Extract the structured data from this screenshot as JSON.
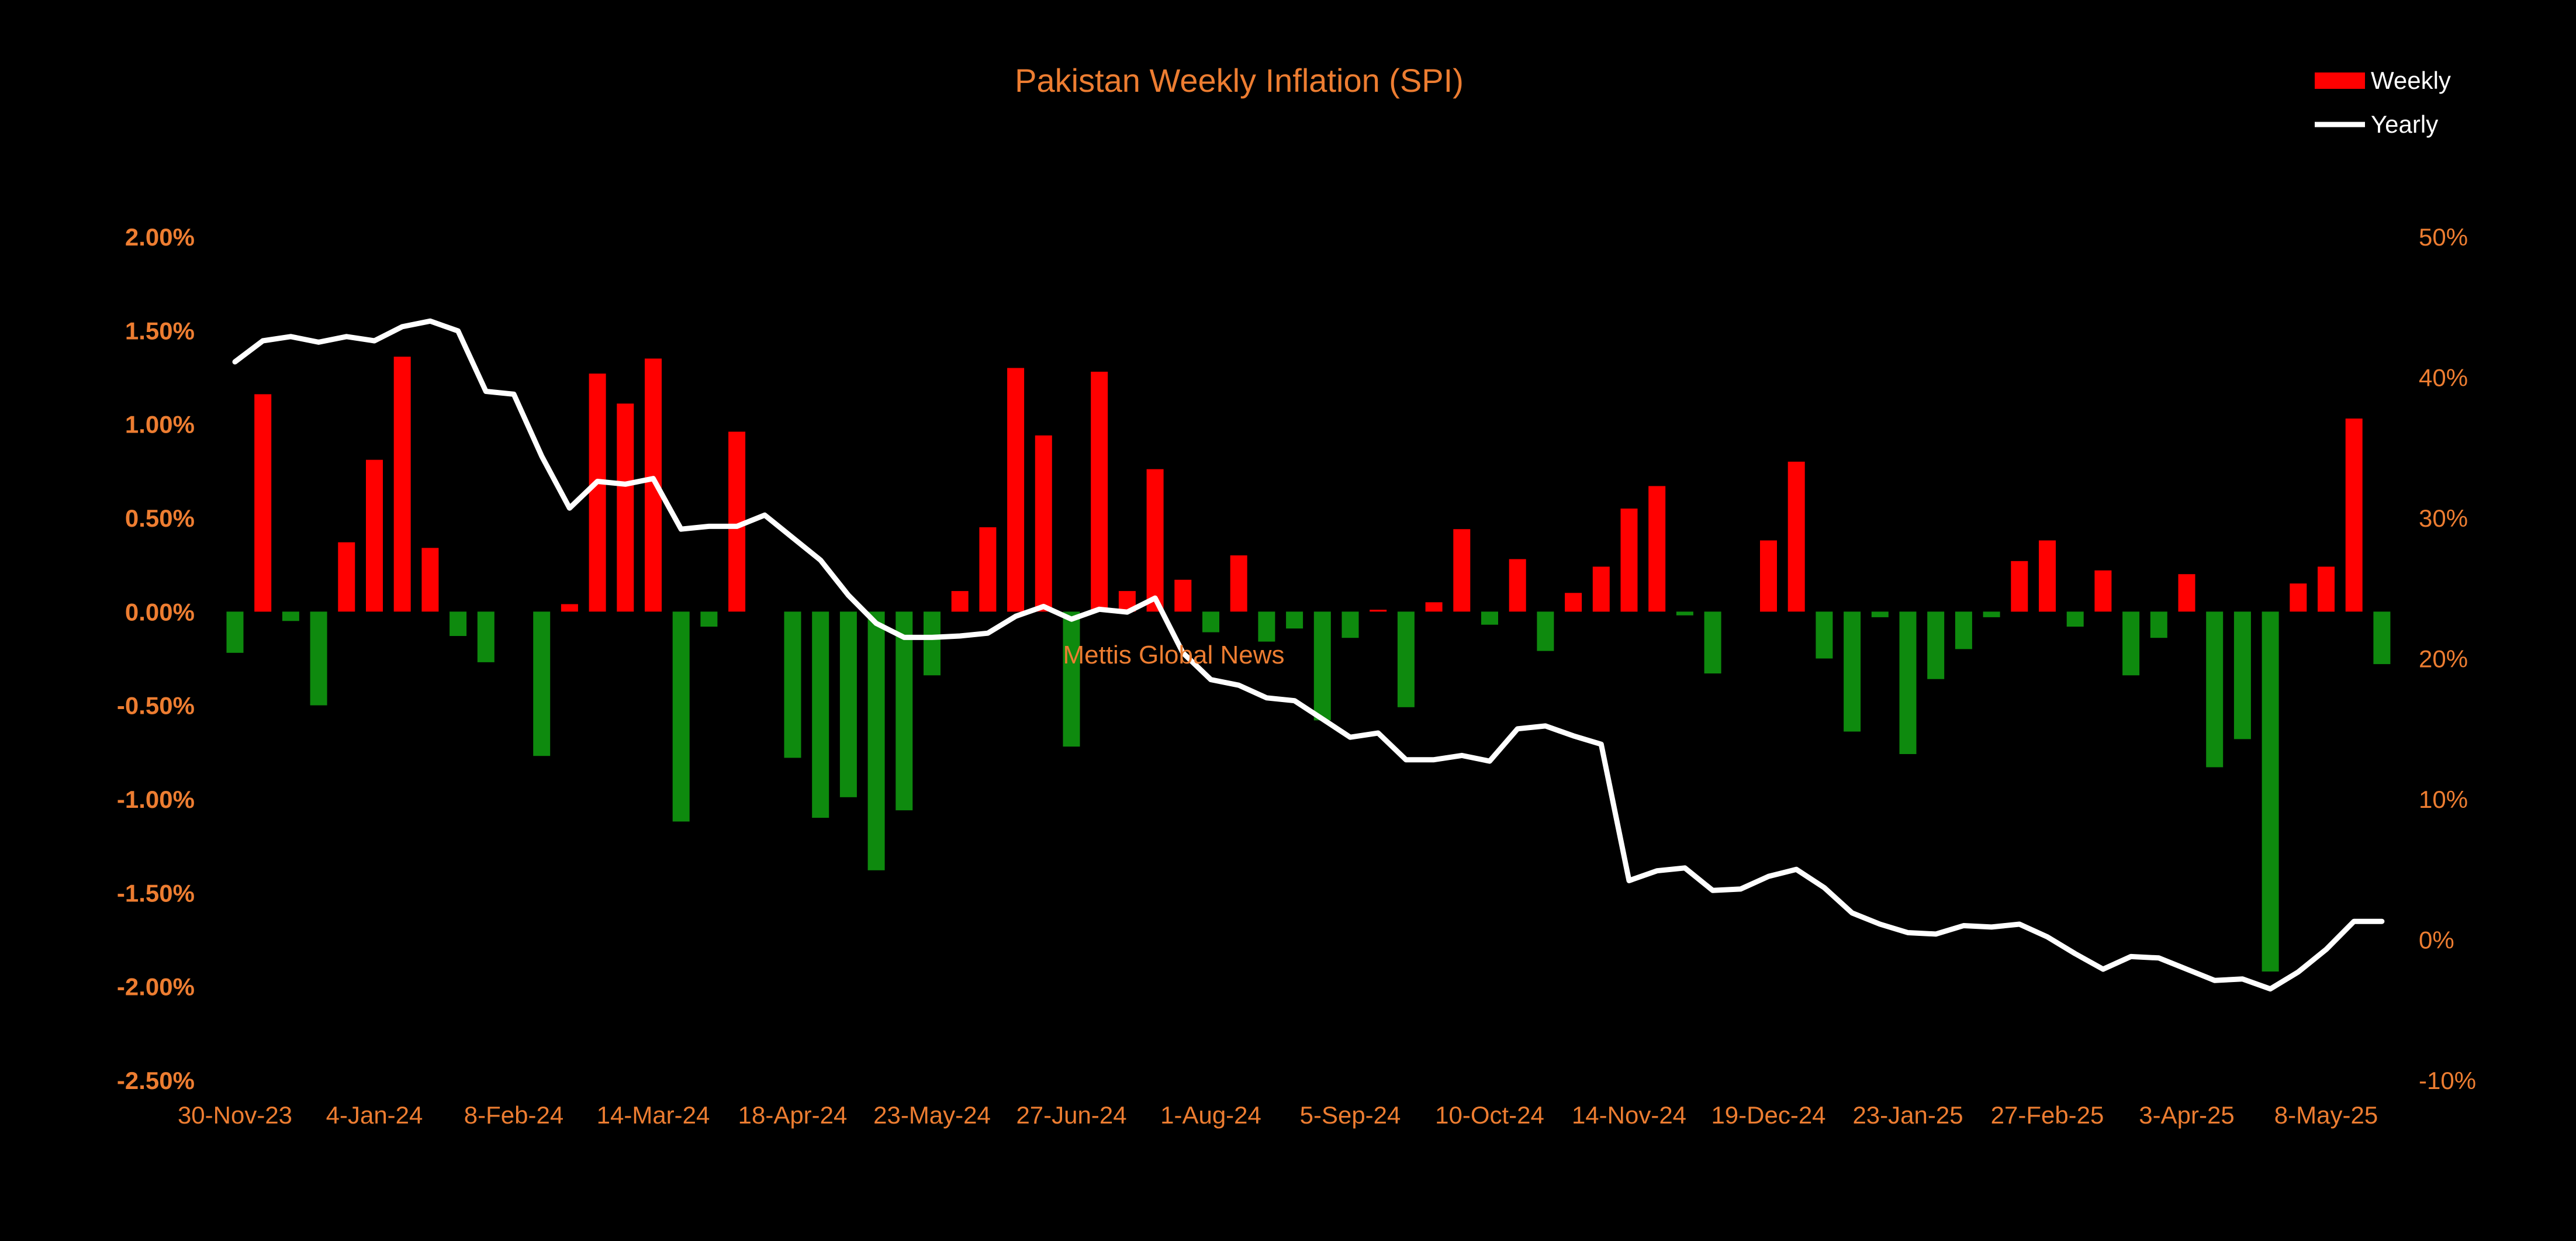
{
  "chart_data": {
    "type": "bar",
    "title": "Pakistan Weekly Inflation (SPI)",
    "watermark": "Mettis Global News",
    "legend_position": "top-right",
    "grid": false,
    "colors": {
      "background": "#000000",
      "text": "#ED7D31",
      "weekly_positive": "#FF0000",
      "weekly_negative": "#0E8A0E",
      "yearly_line": "#FFFFFF"
    },
    "y_left": {
      "ylim": [
        -2.5,
        2.0
      ],
      "ticks": [
        "2.00%",
        "1.50%",
        "1.00%",
        "0.50%",
        "0.00%",
        "-0.50%",
        "-1.00%",
        "-1.50%",
        "-2.00%",
        "-2.50%"
      ]
    },
    "y_right": {
      "ylim": [
        -10,
        50
      ],
      "ticks": [
        "50%",
        "40%",
        "30%",
        "20%",
        "10%",
        "0%",
        "-10%"
      ]
    },
    "x_tick_labels": [
      "30-Nov-23",
      "4-Jan-24",
      "8-Feb-24",
      "14-Mar-24",
      "18-Apr-24",
      "23-May-24",
      "27-Jun-24",
      "1-Aug-24",
      "5-Sep-24",
      "10-Oct-24",
      "14-Nov-24",
      "19-Dec-24",
      "23-Jan-25",
      "27-Feb-25",
      "3-Apr-25",
      "8-May-25"
    ],
    "series": [
      {
        "name": "Weekly",
        "type": "bar",
        "axis": "left",
        "values": [
          -0.22,
          1.16,
          -0.05,
          -0.5,
          0.37,
          0.81,
          1.36,
          0.34,
          -0.13,
          -0.27,
          0.0,
          -0.77,
          0.04,
          1.27,
          1.11,
          1.35,
          -1.12,
          -0.08,
          0.96,
          0.0,
          -0.78,
          -1.1,
          -0.99,
          -1.38,
          -1.06,
          -0.34,
          0.11,
          0.45,
          1.3,
          0.94,
          -0.72,
          1.28,
          0.11,
          0.76,
          0.17,
          -0.11,
          0.3,
          -0.16,
          -0.09,
          -0.58,
          -0.14,
          0.01,
          -0.51,
          0.05,
          0.44,
          -0.07,
          0.28,
          -0.21,
          0.1,
          0.24,
          0.55,
          0.67,
          -0.02,
          -0.33,
          0.0,
          0.38,
          0.8,
          -0.25,
          -0.64,
          -0.03,
          -0.76,
          -0.36,
          -0.2,
          -0.03,
          0.27,
          0.38,
          -0.08,
          0.22,
          -0.34,
          -0.14,
          0.2,
          -0.83,
          -0.68,
          -1.92,
          0.15,
          0.24,
          1.03,
          -0.28
        ]
      },
      {
        "name": "Yearly",
        "type": "line",
        "axis": "right",
        "values": [
          41.1,
          42.6,
          42.9,
          42.5,
          42.9,
          42.6,
          43.6,
          44.0,
          43.3,
          39.0,
          38.8,
          34.4,
          30.7,
          32.6,
          32.4,
          32.8,
          29.2,
          29.4,
          29.4,
          30.2,
          28.6,
          27.0,
          24.5,
          22.5,
          21.5,
          21.5,
          21.6,
          21.8,
          23.0,
          23.7,
          22.8,
          23.5,
          23.3,
          24.3,
          20.4,
          18.5,
          18.1,
          17.2,
          17.0,
          15.7,
          14.4,
          14.7,
          12.8,
          12.8,
          13.1,
          12.7,
          15.0,
          15.2,
          14.5,
          13.9,
          4.2,
          4.9,
          5.1,
          3.5,
          3.6,
          4.5,
          5.0,
          3.7,
          1.9,
          1.1,
          0.5,
          0.4,
          1.0,
          0.9,
          1.1,
          0.2,
          -1.0,
          -2.1,
          -1.2,
          -1.3,
          -2.1,
          -2.9,
          -2.8,
          -3.5,
          -2.3,
          -0.7,
          1.3,
          1.3
        ]
      }
    ]
  }
}
